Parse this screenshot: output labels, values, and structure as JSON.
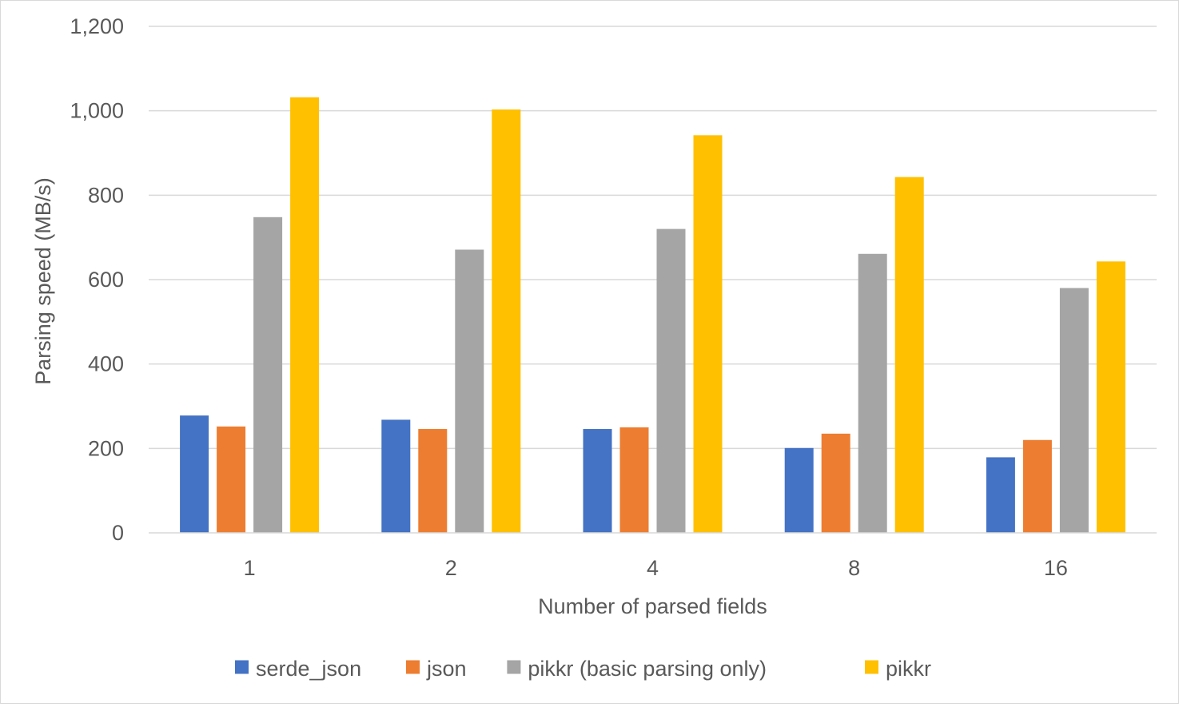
{
  "chart_data": {
    "type": "bar",
    "title": "",
    "xlabel": "Number of parsed fields",
    "ylabel": "Parsing speed (MB/s)",
    "ylim": [
      0,
      1200
    ],
    "yticks": [
      "0",
      "200",
      "400",
      "600",
      "800",
      "1,000",
      "1,200"
    ],
    "ytick_values": [
      0,
      200,
      400,
      600,
      800,
      1000,
      1200
    ],
    "grid": "horizontal",
    "legend_position": "bottom",
    "categories": [
      "1",
      "2",
      "4",
      "8",
      "16"
    ],
    "series": [
      {
        "name": "serde_json",
        "color": "#4472c4",
        "values": [
          278,
          268,
          246,
          201,
          179
        ]
      },
      {
        "name": "json",
        "color": "#ed7d31",
        "values": [
          252,
          246,
          250,
          235,
          220
        ]
      },
      {
        "name": "pikkr (basic parsing only)",
        "color": "#a5a5a5",
        "values": [
          748,
          671,
          720,
          661,
          580
        ]
      },
      {
        "name": "pikkr",
        "color": "#ffc000",
        "values": [
          1032,
          1003,
          942,
          843,
          643
        ]
      }
    ]
  }
}
